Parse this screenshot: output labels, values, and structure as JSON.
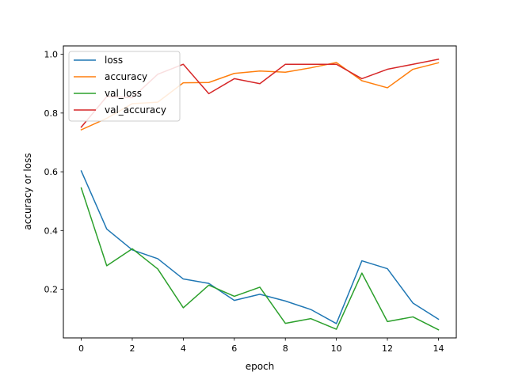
{
  "chart_data": {
    "type": "line",
    "title": "",
    "xlabel": "epoch",
    "ylabel": "accuracy or loss",
    "xlim": [
      -0.7,
      14.7
    ],
    "ylim": [
      0.0344,
      1.0286
    ],
    "x_ticks": [
      0,
      2,
      4,
      6,
      8,
      10,
      12,
      14
    ],
    "x_tick_labels": [
      "0",
      "2",
      "4",
      "6",
      "8",
      "10",
      "12",
      "14"
    ],
    "y_ticks": [
      0.2,
      0.4,
      0.6,
      0.8,
      1.0
    ],
    "y_tick_labels": [
      "0.2",
      "0.4",
      "0.6",
      "0.8",
      "1.0"
    ],
    "grid": false,
    "legend_position": "top-left",
    "x": [
      0,
      1,
      2,
      3,
      4,
      5,
      6,
      7,
      8,
      9,
      10,
      11,
      12,
      13,
      14
    ],
    "series": [
      {
        "name": "loss",
        "color": "#1f77b4",
        "values": [
          0.603,
          0.405,
          0.334,
          0.304,
          0.235,
          0.22,
          0.162,
          0.183,
          0.16,
          0.131,
          0.083,
          0.297,
          0.27,
          0.153,
          0.098
        ]
      },
      {
        "name": "accuracy",
        "color": "#ff7f0e",
        "values": [
          0.743,
          0.782,
          0.832,
          0.837,
          0.903,
          0.904,
          0.935,
          0.943,
          0.939,
          0.954,
          0.972,
          0.91,
          0.886,
          0.949,
          0.971
        ]
      },
      {
        "name": "val_loss",
        "color": "#2ca02c",
        "values": [
          0.545,
          0.28,
          0.338,
          0.269,
          0.137,
          0.214,
          0.176,
          0.207,
          0.084,
          0.1,
          0.064,
          0.255,
          0.09,
          0.106,
          0.062
        ]
      },
      {
        "name": "val_accuracy",
        "color": "#d62728",
        "values": [
          0.752,
          0.856,
          0.852,
          0.932,
          0.966,
          0.866,
          0.917,
          0.9,
          0.966,
          0.966,
          0.966,
          0.917,
          0.949,
          0.966,
          0.983
        ]
      }
    ]
  }
}
